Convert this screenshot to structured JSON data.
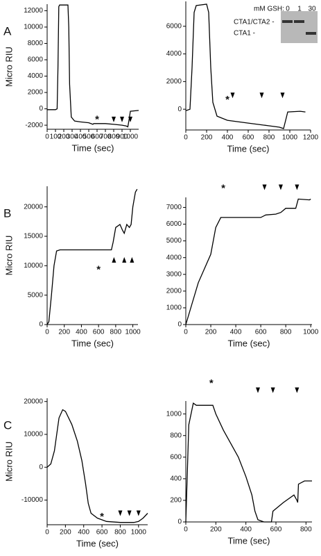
{
  "chart_data": [
    {
      "type": "line",
      "panel_label": "A",
      "ylabel": "Micro RIU",
      "xlabel": "Time (sec)",
      "x": [
        0,
        100,
        120,
        130,
        140,
        150,
        250,
        260,
        270,
        290,
        330,
        400,
        500,
        550,
        560,
        700,
        800,
        900,
        950,
        970,
        990,
        1000,
        1100
      ],
      "series": [
        {
          "color": "#000000",
          "values": [
            -100,
            -100,
            0,
            5000,
            12500,
            12700,
            12700,
            10000,
            3000,
            -1000,
            -1500,
            -1600,
            -1700,
            -1900,
            -1800,
            -1800,
            -1900,
            -2000,
            -2100,
            -2200,
            -1000,
            -300,
            -200
          ]
        }
      ],
      "xlim": [
        0,
        1100
      ],
      "xticks": [
        0,
        100,
        200,
        300,
        400,
        500,
        600,
        700,
        800,
        900,
        1000
      ],
      "ylim": [
        -2500,
        12800
      ],
      "yticks": [
        -2000,
        0,
        2000,
        4000,
        6000,
        8000,
        10000,
        12000
      ],
      "asterisk": {
        "text": "*",
        "x": 600,
        "y": -1100
      },
      "markers": {
        "x": [
          800,
          900,
          1000
        ],
        "y": -1300,
        "direction": "down"
      }
    },
    {
      "type": "line",
      "xlabel": "Time (sec)",
      "x": [
        0,
        40,
        60,
        80,
        100,
        200,
        220,
        240,
        260,
        300,
        400,
        600,
        800,
        900,
        940,
        960,
        980,
        1100,
        1150
      ],
      "series": [
        {
          "color": "#000000",
          "values": [
            -100,
            0,
            3000,
            7000,
            7500,
            7600,
            7000,
            3000,
            500,
            -500,
            -800,
            -1000,
            -1200,
            -1300,
            -1400,
            -800,
            -200,
            -150,
            -200
          ]
        }
      ],
      "xlim": [
        0,
        1200
      ],
      "xticks": [
        0,
        200,
        400,
        600,
        800,
        1000,
        1200
      ],
      "ylim": [
        -1500,
        7800
      ],
      "yticks": [
        0,
        2000,
        4000,
        6000
      ],
      "asterisk": {
        "text": "*",
        "x": 400,
        "y": 800
      },
      "markers": {
        "x": [
          450,
          730,
          930
        ],
        "y": 1000,
        "direction": "down"
      },
      "inset": {
        "title": "mM GSH:",
        "lanes": [
          "0",
          "1",
          "30"
        ],
        "bands": [
          "CTA1/CTA2 -",
          "CTA1 -"
        ]
      }
    },
    {
      "type": "line",
      "panel_label": "B",
      "ylabel": "Micro RIU",
      "xlabel": "Time (sec)",
      "x": [
        0,
        20,
        50,
        80,
        110,
        150,
        750,
        770,
        800,
        850,
        880,
        900,
        930,
        960,
        980,
        1000,
        1030,
        1050
      ],
      "series": [
        {
          "color": "#000000",
          "values": [
            0,
            500,
            5000,
            10000,
            12500,
            12700,
            12700,
            14000,
            16500,
            17000,
            16000,
            15500,
            17000,
            16500,
            17000,
            20000,
            22500,
            23000
          ]
        }
      ],
      "xlim": [
        0,
        1060
      ],
      "xticks": [
        0,
        200,
        400,
        600,
        800,
        1000
      ],
      "ylim": [
        0,
        23500
      ],
      "yticks": [
        0,
        5000,
        10000,
        15000,
        20000
      ],
      "asterisk": {
        "text": "*",
        "x": 600,
        "y": 9600
      },
      "markers": {
        "x": [
          780,
          900,
          990
        ],
        "y": 11000,
        "direction": "up"
      }
    },
    {
      "type": "line",
      "xlabel": "Time (sec)",
      "x": [
        0,
        100,
        200,
        240,
        280,
        600,
        640,
        720,
        760,
        800,
        880,
        900,
        990,
        1000
      ],
      "series": [
        {
          "color": "#000000",
          "values": [
            0,
            2500,
            4200,
            5800,
            6400,
            6400,
            6550,
            6600,
            6700,
            6950,
            6950,
            7500,
            7450,
            7500
          ]
        }
      ],
      "xlim": [
        0,
        1010
      ],
      "xticks": [
        0,
        200,
        400,
        600,
        800,
        1000
      ],
      "ylim": [
        0,
        7600
      ],
      "yticks": [
        0,
        1000,
        2000,
        3000,
        4000,
        5000,
        6000,
        7000
      ],
      "asterisk": {
        "text": "*",
        "x": 300,
        "y": 8250
      },
      "markers": {
        "x": [
          630,
          760,
          890
        ],
        "y": 8200,
        "direction": "down"
      }
    },
    {
      "type": "line",
      "panel_label": "C",
      "ylabel": "Micro RIU",
      "xlabel": "Time (sec)",
      "x": [
        0,
        40,
        80,
        130,
        170,
        200,
        270,
        330,
        380,
        420,
        450,
        480,
        550,
        650,
        800,
        950,
        1000,
        1050,
        1100
      ],
      "series": [
        {
          "color": "#000000",
          "values": [
            0,
            1000,
            5000,
            15000,
            17500,
            17000,
            13000,
            8000,
            2000,
            -5000,
            -11000,
            -14000,
            -15500,
            -16500,
            -16800,
            -16800,
            -16500,
            -15500,
            -14000
          ]
        }
      ],
      "xlim": [
        0,
        1100
      ],
      "xticks": [
        0,
        200,
        400,
        600,
        800,
        1000
      ],
      "ylim": [
        -17500,
        21000
      ],
      "yticks": [
        -10000,
        0,
        10000,
        20000
      ],
      "asterisk": {
        "text": "*",
        "x": 600,
        "y": -14500
      },
      "markers": {
        "x": [
          800,
          900,
          1000
        ],
        "y": -14000,
        "direction": "down"
      }
    },
    {
      "type": "line",
      "xlabel": "Time (sec)",
      "x": [
        0,
        20,
        50,
        70,
        180,
        200,
        250,
        350,
        400,
        440,
        460,
        480,
        520,
        570,
        580,
        650,
        720,
        740,
        745,
        750,
        790,
        840
      ],
      "series": [
        {
          "color": "#000000",
          "values": [
            0,
            900,
            1100,
            1080,
            1080,
            1000,
            850,
            600,
            420,
            250,
            100,
            20,
            0,
            0,
            100,
            180,
            250,
            200,
            180,
            350,
            380,
            380
          ]
        }
      ],
      "xlim": [
        0,
        840
      ],
      "xticks": [
        0,
        200,
        400,
        600,
        800
      ],
      "ylim": [
        0,
        1120
      ],
      "yticks": [
        0,
        200,
        400,
        600,
        800,
        1000
      ],
      "asterisk": {
        "text": "*",
        "x": 170,
        "y": 1300
      },
      "markers": {
        "x": [
          480,
          580,
          740
        ],
        "y": 1220,
        "direction": "down"
      }
    }
  ]
}
